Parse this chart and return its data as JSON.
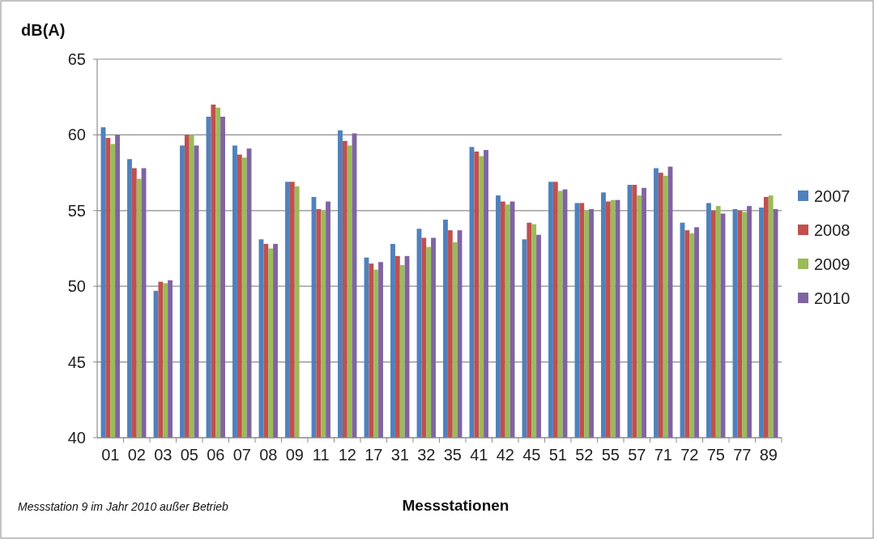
{
  "chart_data": {
    "type": "bar",
    "ylabel": "dB(A)",
    "xlabel": "Messstationen",
    "annotations": [
      "Messstation 9 im Jahr 2010 außer Betrieb"
    ],
    "categories": [
      "01",
      "02",
      "03",
      "05",
      "06",
      "07",
      "08",
      "09",
      "11",
      "12",
      "17",
      "31",
      "32",
      "35",
      "41",
      "42",
      "45",
      "51",
      "52",
      "55",
      "57",
      "71",
      "72",
      "75",
      "77",
      "89"
    ],
    "series": [
      {
        "name": "2007",
        "color": "#4f81bd",
        "values": [
          60.5,
          58.4,
          49.7,
          59.3,
          61.2,
          59.3,
          53.1,
          56.9,
          55.9,
          60.3,
          51.9,
          52.8,
          53.8,
          54.4,
          59.2,
          56.0,
          53.1,
          56.9,
          55.5,
          56.2,
          56.7,
          57.8,
          54.2,
          55.5,
          55.1,
          55.2
        ]
      },
      {
        "name": "2008",
        "color": "#c0504d",
        "values": [
          59.8,
          57.8,
          50.3,
          60.0,
          62.0,
          58.7,
          52.8,
          56.9,
          55.1,
          59.6,
          51.5,
          52.0,
          53.2,
          53.7,
          58.9,
          55.6,
          54.2,
          56.9,
          55.5,
          55.6,
          56.7,
          57.5,
          53.7,
          55.0,
          55.0,
          55.9
        ]
      },
      {
        "name": "2009",
        "color": "#9bbb59",
        "values": [
          59.4,
          57.1,
          50.2,
          60.0,
          61.8,
          58.5,
          52.5,
          56.6,
          55.0,
          59.3,
          51.1,
          51.4,
          52.6,
          52.9,
          58.6,
          55.4,
          54.1,
          56.3,
          55.0,
          55.7,
          56.0,
          57.3,
          53.5,
          55.3,
          54.9,
          56.0
        ]
      },
      {
        "name": "2010",
        "color": "#8064a2",
        "values": [
          60.0,
          57.8,
          50.4,
          59.3,
          61.2,
          59.1,
          52.8,
          null,
          55.6,
          60.1,
          51.6,
          52.0,
          53.2,
          53.7,
          59.0,
          55.6,
          53.4,
          56.4,
          55.1,
          55.7,
          56.5,
          57.9,
          53.9,
          54.8,
          55.3,
          55.1
        ]
      }
    ],
    "ylim": [
      40,
      65
    ],
    "yticks": [
      40,
      45,
      50,
      55,
      60,
      65
    ],
    "grid": "y",
    "legend": "right"
  }
}
